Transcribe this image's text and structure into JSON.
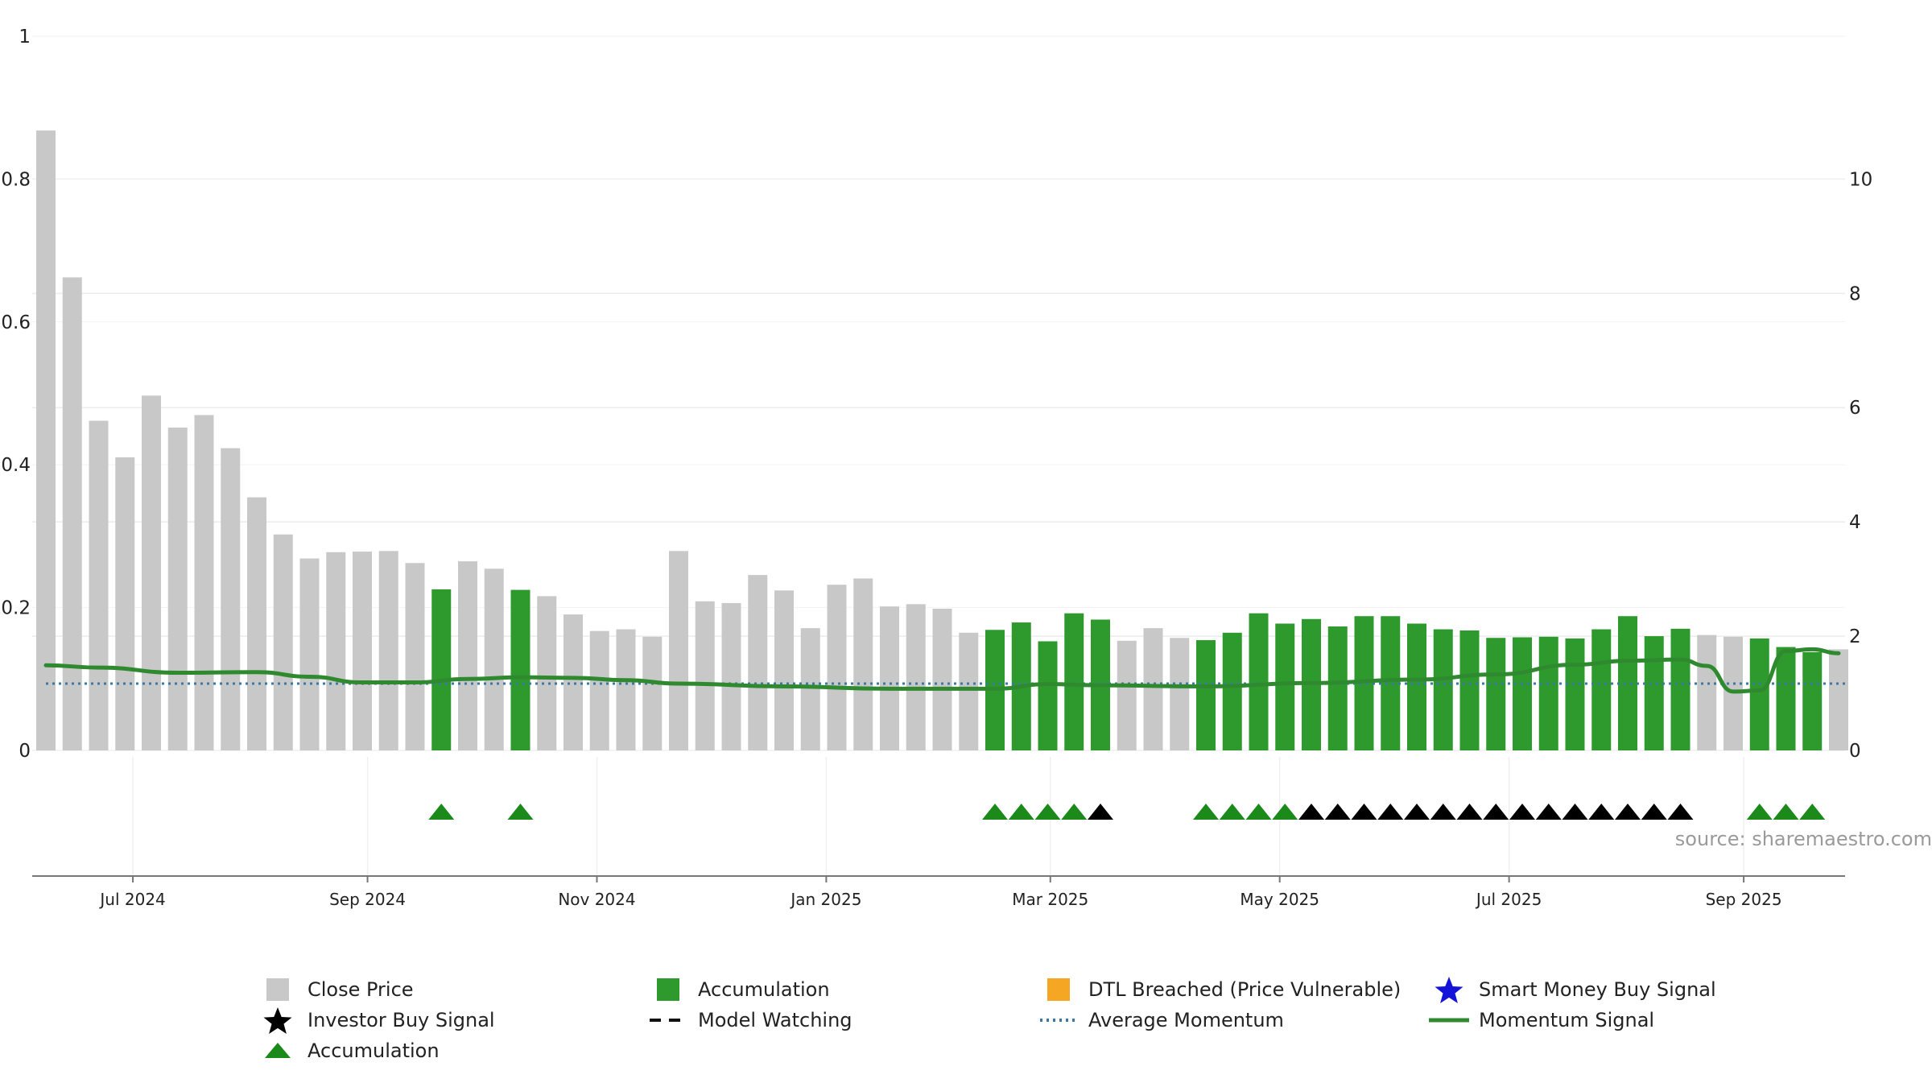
{
  "chart_data": {
    "type": "bar",
    "source": "source: sharemaestro.com",
    "x_ticks": [
      "Jul 2024",
      "Sep 2024",
      "Nov 2024",
      "Jan 2025",
      "Mar 2025",
      "May 2025",
      "Jul 2025",
      "Sep 2025"
    ],
    "x_tick_weeks": [
      3.3,
      12.2,
      20.9,
      29.6,
      38.1,
      46.8,
      55.5,
      64.4
    ],
    "left_axis": {
      "ticks": [
        "0",
        "0.2",
        "0.4",
        "0.6",
        "0.8",
        "1"
      ],
      "ylim": [
        0,
        1.0
      ]
    },
    "right_axis": {
      "ticks": [
        "0",
        "2",
        "4",
        "6",
        "8",
        "10"
      ],
      "ylim": [
        0,
        12.5
      ]
    },
    "grid": true,
    "legend_position": "bottom",
    "colors": {
      "close_price": "#c8c8c8",
      "accumulation": "#2e9a2e",
      "dtl_breached": "#f5a623",
      "smart_money": "#1414d9",
      "investor_buy": "#000000",
      "average_momentum": "#3a78a8",
      "momentum_signal": "#2f8a2f",
      "accumulation_marker": "#1b8a1b"
    },
    "weeks": 69,
    "close_price": [
      10.85,
      8.28,
      5.77,
      5.13,
      6.21,
      5.65,
      5.87,
      5.29,
      4.43,
      3.78,
      3.36,
      3.47,
      3.48,
      3.49,
      3.28,
      2.82,
      3.31,
      3.18,
      2.81,
      2.7,
      2.38,
      2.09,
      2.12,
      1.99,
      3.49,
      2.61,
      2.58,
      3.07,
      2.8,
      2.14,
      2.9,
      3.01,
      2.52,
      2.56,
      2.48,
      2.06,
      2.11,
      2.24,
      1.91,
      2.4,
      2.29,
      1.92,
      2.14,
      1.97,
      1.93,
      2.06,
      2.4,
      2.22,
      2.3,
      2.17,
      2.35,
      2.35,
      2.22,
      2.12,
      2.1,
      1.97,
      1.98,
      1.99,
      1.96,
      2.12,
      2.35,
      2.0,
      2.13,
      2.02,
      1.99,
      1.96,
      1.81,
      1.72,
      1.77
    ],
    "accumulation_weeks": [
      15,
      18,
      36,
      37,
      38,
      39,
      40,
      44,
      45,
      46,
      47,
      48,
      49,
      50,
      51,
      52,
      53,
      54,
      55,
      56,
      57,
      58,
      59,
      60,
      61,
      62,
      65,
      66,
      67
    ],
    "accumulation_markers": [
      15,
      18,
      36,
      37,
      38,
      39,
      44,
      45,
      46,
      47,
      65,
      66,
      67
    ],
    "investor_buy_markers": [
      40,
      48,
      49,
      50,
      51,
      52,
      53,
      54,
      55,
      56,
      57,
      58,
      59,
      60,
      61,
      62
    ],
    "momentum_signal": {
      "points": [
        [
          0,
          1.49
        ],
        [
          2,
          1.45
        ],
        [
          5,
          1.36
        ],
        [
          8,
          1.37
        ],
        [
          10,
          1.29
        ],
        [
          12,
          1.19
        ],
        [
          14,
          1.19
        ],
        [
          16,
          1.25
        ],
        [
          18,
          1.28
        ],
        [
          20,
          1.27
        ],
        [
          22,
          1.23
        ],
        [
          24,
          1.17
        ],
        [
          28,
          1.12
        ],
        [
          32,
          1.08
        ],
        [
          36,
          1.08
        ],
        [
          38,
          1.16
        ],
        [
          40,
          1.14
        ],
        [
          44,
          1.12
        ],
        [
          48,
          1.18
        ],
        [
          52,
          1.24
        ],
        [
          55,
          1.33
        ],
        [
          58,
          1.5
        ],
        [
          60,
          1.57
        ],
        [
          62,
          1.59
        ],
        [
          63,
          1.48
        ],
        [
          64,
          1.03
        ],
        [
          65,
          1.05
        ],
        [
          66,
          1.74
        ],
        [
          67,
          1.77
        ],
        [
          68,
          1.7
        ]
      ]
    },
    "average_momentum": {
      "value": 1.17
    }
  },
  "legend": [
    {
      "symbol": "square-gray",
      "label": "Close Price"
    },
    {
      "symbol": "square-green",
      "label": "Accumulation"
    },
    {
      "symbol": "square-orange",
      "label": "DTL Breached (Price Vulnerable)"
    },
    {
      "symbol": "star-blue",
      "label": "Smart Money Buy Signal"
    },
    {
      "symbol": "star-black",
      "label": "Investor Buy Signal"
    },
    {
      "symbol": "dash-black",
      "label": "Model Watching"
    },
    {
      "symbol": "dotted-blue",
      "label": "Average Momentum"
    },
    {
      "symbol": "line-green",
      "label": "Momentum Signal"
    },
    {
      "symbol": "triangle-green",
      "label": "Accumulation"
    }
  ]
}
